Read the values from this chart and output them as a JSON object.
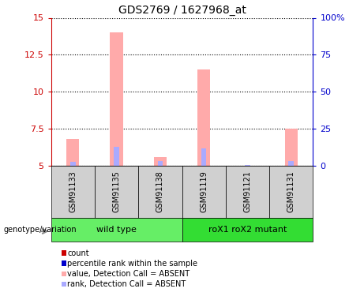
{
  "title": "GDS2769 / 1627968_at",
  "samples": [
    "GSM91133",
    "GSM91135",
    "GSM91138",
    "GSM91119",
    "GSM91121",
    "GSM91131"
  ],
  "groups": [
    {
      "label": "wild type",
      "color": "#66ee66",
      "start": 0,
      "end": 2
    },
    {
      "label": "roX1 roX2 mutant",
      "color": "#33dd33",
      "start": 3,
      "end": 5
    }
  ],
  "ylim": [
    5,
    15
  ],
  "yticks_left": [
    5,
    7.5,
    10,
    12.5,
    15
  ],
  "yticks_right": [
    0,
    25,
    50,
    75,
    100
  ],
  "left_color": "#cc0000",
  "right_color": "#0000cc",
  "bar_values": [
    6.8,
    14.0,
    5.6,
    11.5,
    5.0,
    7.5
  ],
  "rank_values": [
    5.25,
    6.3,
    5.3,
    6.2,
    5.05,
    5.3
  ],
  "bar_color_pink": "#ffaaaa",
  "bar_color_blue": "#aaaaff",
  "bar_width": 0.3,
  "rank_bar_width": 0.12,
  "background_label": "#d0d0d0",
  "genotype_label": "genotype/variation",
  "legend_items": [
    {
      "color": "#cc0000",
      "label": "count"
    },
    {
      "color": "#0000cc",
      "label": "percentile rank within the sample"
    },
    {
      "color": "#ffaaaa",
      "label": "value, Detection Call = ABSENT"
    },
    {
      "color": "#aaaaff",
      "label": "rank, Detection Call = ABSENT"
    }
  ]
}
